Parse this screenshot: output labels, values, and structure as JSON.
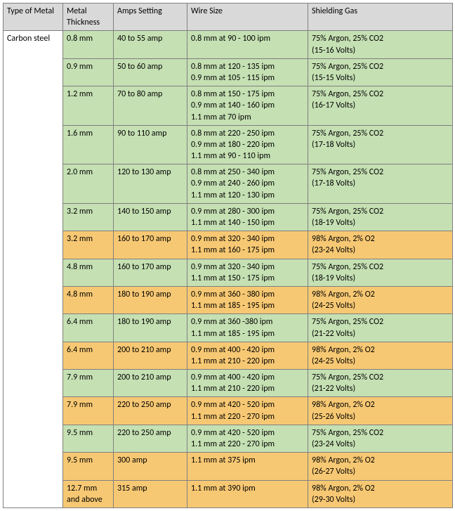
{
  "colors": {
    "header_bg": "#d9d9d9",
    "metal_bg": "#ffffff",
    "green_bg": "#c5e0b3",
    "orange_bg": "#f7c873",
    "border": "#7f7f7f"
  },
  "fonts": {
    "family": "Calibri, Arial, sans-serif",
    "size_pt": 9
  },
  "columns": [
    "Type of Metal",
    "Metal Thickness",
    "Amps Setting",
    "Wire Size",
    "Shielding Gas"
  ],
  "metal_type": "Carbon steel",
  "rows": [
    {
      "bg": "green",
      "thickness": "0.8 mm",
      "amps": "40 to 55 amp",
      "wire": "0.8 mm at 90 - 100 ipm",
      "gas": "75% Argon, 25% CO2\n(15-16 Volts)"
    },
    {
      "bg": "green",
      "thickness": "0.9 mm",
      "amps": "50 to 60 amp",
      "wire": "0.8 mm at 120 - 135 ipm\n0.9 mm at 105 - 115 ipm",
      "gas": "75% Argon, 25% CO2\n(15-15 Volts)"
    },
    {
      "bg": "green",
      "thickness": "1.2 mm",
      "amps": "70 to 80 amp",
      "wire": "0.8 mm at 150 - 175 ipm\n0.9 mm at 140 - 160 ipm\n1.1 mm at 70 ipm",
      "gas": "75% Argon, 25% CO2\n(16-17 Volts)"
    },
    {
      "bg": "green",
      "thickness": "1.6 mm",
      "amps": "90 to 110 amp",
      "wire": "0.8 mm at 220 - 250 ipm\n0.9 mm at 180 - 220 ipm\n1.1 mm at 90 - 110 ipm",
      "gas": "75% Argon, 25% CO2\n(17-18 Volts)"
    },
    {
      "bg": "green",
      "thickness": "2.0 mm",
      "amps": "120 to 130 amp",
      "wire": "0.8 mm at 250 - 340 ipm\n0.9 mm at 240 - 260 ipm\n1.1 mm at 120 - 130 ipm",
      "gas": "75% Argon, 25% CO2\n(17-18 Volts)"
    },
    {
      "bg": "green",
      "thickness": "3.2 mm",
      "amps": "140 to 150 amp",
      "wire": "0.9 mm at 280 - 300 ipm\n1.1 mm at 140 - 150 ipm",
      "gas": "75% Argon, 25% CO2\n(18-19 Volts)"
    },
    {
      "bg": "orange",
      "thickness": "3.2 mm",
      "amps": "160 to 170 amp",
      "wire": "0.9 mm at 320 - 340 ipm\n1.1 mm at 160 - 175 ipm",
      "gas": "98% Argon, 2% O2\n(23-24 Volts)"
    },
    {
      "bg": "green",
      "thickness": "4.8 mm",
      "amps": "160 to 170 amp",
      "wire": "0.9 mm at 320 - 340 ipm\n1.1 mm at 150 - 175 ipm",
      "gas": "75% Argon, 25% CO2\n(18-19 Volts)"
    },
    {
      "bg": "orange",
      "thickness": "4.8 mm",
      "amps": "180 to 190 amp",
      "wire": "0.9 mm at 360 - 380 ipm\n1.1 mm at 185 - 195 ipm",
      "gas": "98% Argon, 2% O2\n(24-25 Volts)"
    },
    {
      "bg": "green",
      "thickness": "6.4 mm",
      "amps": "180 to 190 amp",
      "wire": "0.9 mm at 360 -380 ipm\n1.1 mm at 185 - 195 ipm",
      "gas": "75% Argon, 25% CO2\n(21-22 Volts)"
    },
    {
      "bg": "orange",
      "thickness": "6.4 mm",
      "amps": "200 to 210 amp",
      "wire": "0.9 mm at 400 - 420 ipm\n1.1 mm at 210 - 220 ipm",
      "gas": "98% Argon, 2% O2\n(24-25 Volts)"
    },
    {
      "bg": "green",
      "thickness": "7.9 mm",
      "amps": "200 to 210 amp",
      "wire": "0.9 mm at 400 - 420 ipm\n1.1 mm at 210 - 220 ipm",
      "gas": "75% Argon, 25% CO2\n(21-22 Volts)"
    },
    {
      "bg": "orange",
      "thickness": "7.9 mm",
      "amps": "220 to 250 amp",
      "wire": "0.9 mm at 420 - 520 ipm\n1.1 mm at 220 - 270 ipm",
      "gas": "98% Argon, 2% O2\n(25-26 Volts)"
    },
    {
      "bg": "green",
      "thickness": "9.5 mm",
      "amps": "220 to 250 amp",
      "wire": "0.9 mm at 420 - 520 ipm\n1.1 mm at 220 - 270 ipm",
      "gas": "75% Argon, 25% CO2\n(23-24 Volts)"
    },
    {
      "bg": "orange",
      "thickness": "9.5 mm",
      "amps": "300 amp",
      "wire": "1.1 mm at 375 ipm",
      "gas": "98% Argon, 2% O2\n(26-27 Volts)"
    },
    {
      "bg": "orange",
      "thickness": "12.7 mm and above",
      "amps": "315 amp",
      "wire": "1.1 mm at 390 ipm",
      "gas": "98% Argon, 2% O2\n(29-30 Volts)"
    }
  ]
}
